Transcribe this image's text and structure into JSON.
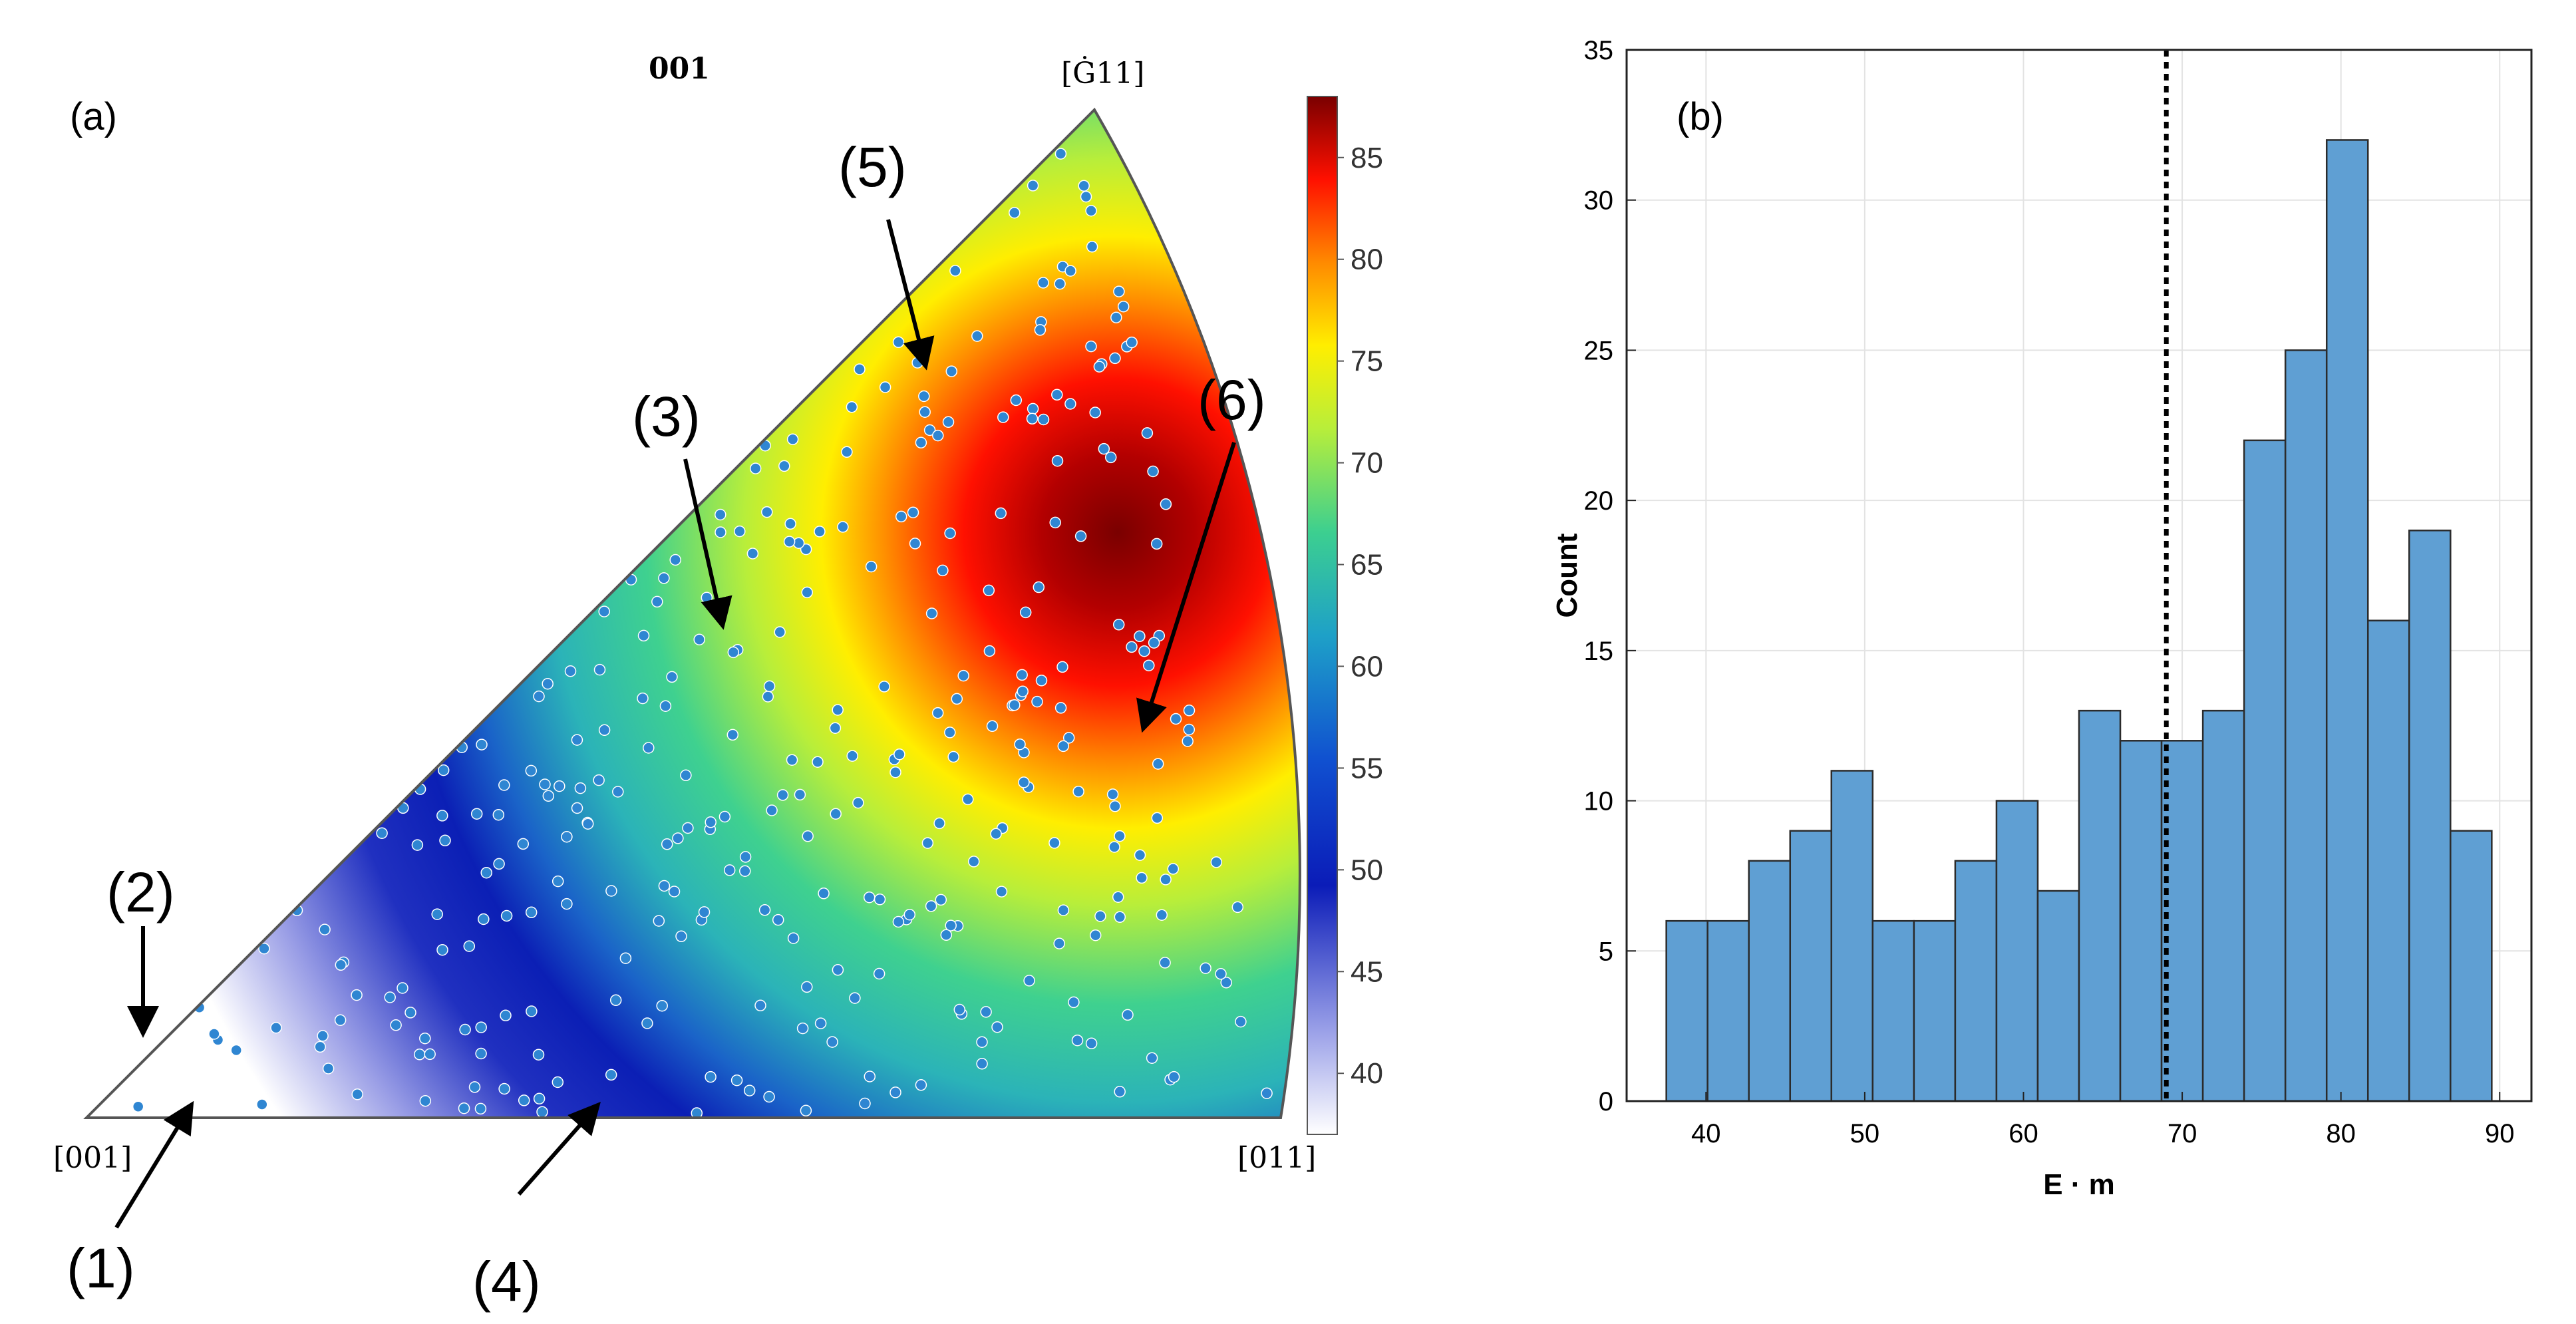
{
  "chart_data": [
    {
      "type": "scatter",
      "panel": "(a)",
      "title": "001",
      "corner_labels": [
        "[001]",
        "[Ġ11]",
        "[011]"
      ],
      "colorbar": {
        "min": 37,
        "max": 88,
        "ticks": [
          40,
          45,
          50,
          55,
          60,
          65,
          70,
          75,
          80,
          85
        ],
        "colormap": "jet with white low end"
      },
      "colorfield_peak": 88,
      "annotations": [
        "(1)",
        "(2)",
        "(3)",
        "(4)",
        "(5)",
        "(6)"
      ],
      "point_color": "#2f86d2"
    },
    {
      "type": "bar",
      "panel": "(b)",
      "xlabel": "E · m",
      "ylabel": "Count",
      "bin_edges": [
        37.5,
        40.1,
        42.7,
        45.3,
        47.9,
        50.5,
        53.1,
        55.7,
        58.3,
        60.9,
        63.5,
        66.1,
        68.7,
        71.3,
        73.9,
        76.5,
        79.1,
        81.7,
        84.3,
        86.9,
        89.5
      ],
      "values": [
        6,
        6,
        8,
        9,
        11,
        6,
        6,
        8,
        10,
        7,
        13,
        12,
        12,
        13,
        22,
        25,
        32,
        16,
        19,
        9
      ],
      "xlim": [
        35,
        92
      ],
      "ylim": [
        0,
        35
      ],
      "xticks": [
        40,
        50,
        60,
        70,
        80,
        90
      ],
      "yticks": [
        0,
        5,
        10,
        15,
        20,
        25,
        30,
        35
      ],
      "dashed_line_x": 69,
      "grid": true,
      "bar_color": "#5f9fd3"
    }
  ]
}
